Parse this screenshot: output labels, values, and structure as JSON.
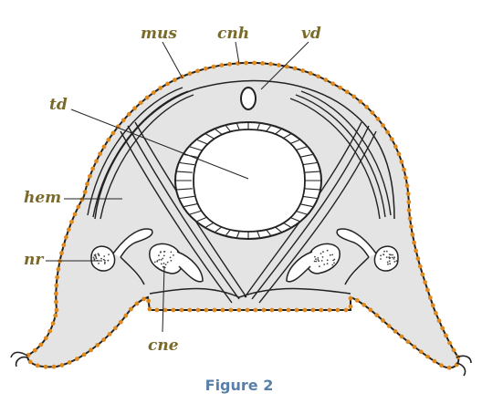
{
  "caption": "Figure 2",
  "labels": {
    "mus": "mus",
    "cnh": "cnh",
    "vd": "vd",
    "td": "td",
    "hem": "hem",
    "nr": "nr",
    "cne": "cne"
  },
  "colors": {
    "label": "#7a6a2a",
    "caption": "#5a7fa8",
    "outline": "#222222",
    "body_fill": "#e4e4e4",
    "dots": "#e08a1e",
    "lumen": "#ffffff"
  }
}
